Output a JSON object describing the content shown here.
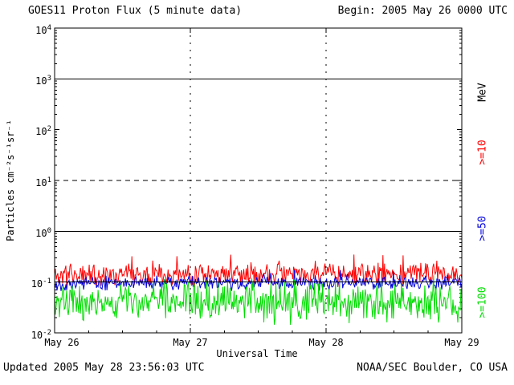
{
  "chart_data": {
    "type": "line",
    "title": "GOES11 Proton Flux (5 minute data)",
    "begin_label": "Begin: 2005 May 26 0000 UTC",
    "xlabel": "Universal Time",
    "ylabel": "Particles cm⁻²s⁻¹sr⁻¹",
    "right_axis_title": "MeV",
    "x_ticks": [
      "May 26",
      "May 27",
      "May 28",
      "May 29"
    ],
    "y_ticks": [
      {
        "base": "10",
        "exp": "4"
      },
      {
        "base": "10",
        "exp": "3"
      },
      {
        "base": "10",
        "exp": "2"
      },
      {
        "base": "10",
        "exp": "1"
      },
      {
        "base": "10",
        "exp": "0"
      },
      {
        "base": "10",
        "exp": "-1"
      },
      {
        "base": "10",
        "exp": "-2"
      }
    ],
    "ylim_log10": [
      -2,
      4
    ],
    "grid": {
      "vertical_day_lines": [
        "May 27",
        "May 28"
      ],
      "style": "dashed"
    },
    "ref_lines": [
      {
        "level_log10": 3,
        "style": "solid"
      },
      {
        "level_log10": 1,
        "style": "dashed"
      },
      {
        "level_log10": 0,
        "style": "solid"
      },
      {
        "level_log10": -1,
        "style": "solid"
      }
    ],
    "series": [
      {
        "name": "Protons >=10 MeV",
        "label": ">=10",
        "color": "#ff0000",
        "base_log10": -0.85,
        "band_log10": 0.17,
        "spike_prob": 0.08,
        "spike_max_log10": 0.35,
        "seed": 11,
        "approx_range_flux": [
          0.07,
          0.45
        ]
      },
      {
        "name": "Protons >=50 MeV",
        "label": ">=50",
        "color": "#0000dd",
        "base_log10": -1.02,
        "band_log10": 0.11,
        "spike_prob": 0.04,
        "spike_max_log10": 0.2,
        "seed": 22,
        "approx_range_flux": [
          0.06,
          0.18
        ]
      },
      {
        "name": "Protons >=100 MeV",
        "label": ">=100",
        "color": "#00dd00",
        "base_log10": -1.4,
        "band_log10": 0.3,
        "spike_prob": 0.06,
        "spike_max_log10": 0.25,
        "seed": 33,
        "approx_range_flux": [
          0.012,
          0.11
        ]
      }
    ],
    "points_per_series": 507
  },
  "footer": {
    "updated": "Updated 2005 May 28 23:56:03 UTC",
    "credit": "NOAA/SEC Boulder, CO USA"
  }
}
